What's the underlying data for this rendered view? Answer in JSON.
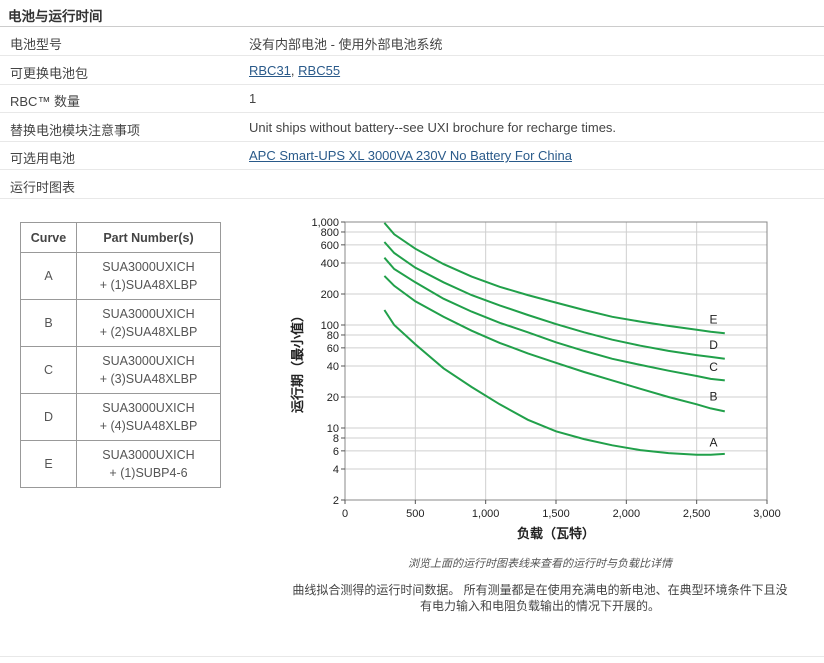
{
  "section_title": "电池与运行时间",
  "specs": [
    {
      "label": "电池型号",
      "value": "没有内部电池 - 使用外部电池系统"
    },
    {
      "label": "可更换电池包",
      "links": [
        "RBC31",
        "RBC55"
      ],
      "separator": ", "
    },
    {
      "label": "RBC™ 数量",
      "value": "1"
    },
    {
      "label": "替换电池模块注意事项",
      "value": "Unit ships without battery--see UXI brochure for recharge times."
    },
    {
      "label": "可选用电池",
      "link": "APC Smart-UPS XL 3000VA 230V No Battery For China"
    },
    {
      "label": "运行时图表",
      "value": ""
    }
  ],
  "curve_table": {
    "headers": [
      "Curve",
      "Part Number(s)"
    ],
    "rows": [
      {
        "curve": "A",
        "line1": "SUA3000UXICH",
        "line2": "+ (1)SUA48XLBP"
      },
      {
        "curve": "B",
        "line1": "SUA3000UXICH",
        "line2": "+ (2)SUA48XLBP"
      },
      {
        "curve": "C",
        "line1": "SUA3000UXICH",
        "line2": "+ (3)SUA48XLBP"
      },
      {
        "curve": "D",
        "line1": "SUA3000UXICH",
        "line2": "+ (4)SUA48XLBP"
      },
      {
        "curve": "E",
        "line1": "SUA3000UXICH",
        "line2": "+ (1)SUBP4-6"
      }
    ]
  },
  "chart_data": {
    "type": "line",
    "xlabel": "负载（瓦特）",
    "ylabel": "运行期（最小值）",
    "xlim": [
      0,
      3000
    ],
    "ylim": [
      2,
      1000
    ],
    "y_scale": "log",
    "x_ticks": [
      0,
      500,
      1000,
      1500,
      2000,
      2500,
      3000
    ],
    "x_tick_labels": [
      "0",
      "500",
      "1,000",
      "1,500",
      "2,000",
      "2,500",
      "3,000"
    ],
    "y_ticks": [
      2,
      4,
      6,
      8,
      10,
      20,
      40,
      60,
      80,
      100,
      200,
      400,
      600,
      800,
      1000
    ],
    "y_tick_labels": [
      "2",
      "4",
      "6",
      "8",
      "10",
      "20",
      "40",
      "60",
      "80",
      "100",
      "200",
      "400",
      "600",
      "800",
      "1,000"
    ],
    "grid": true,
    "line_color": "#21a04a",
    "series": [
      {
        "name": "A",
        "x": [
          280,
          350,
          500,
          700,
          900,
          1100,
          1300,
          1500,
          1700,
          1900,
          2100,
          2300,
          2500,
          2600,
          2700
        ],
        "y": [
          140,
          100,
          65,
          38,
          25,
          17,
          12,
          9.3,
          7.8,
          6.8,
          6.1,
          5.7,
          5.5,
          5.5,
          5.6
        ]
      },
      {
        "name": "B",
        "x": [
          280,
          350,
          500,
          700,
          900,
          1100,
          1300,
          1500,
          1700,
          1900,
          2100,
          2300,
          2500,
          2600,
          2700
        ],
        "y": [
          300,
          240,
          170,
          120,
          88,
          67,
          53,
          43,
          35,
          29,
          24,
          20,
          17,
          15.5,
          14.5
        ]
      },
      {
        "name": "C",
        "x": [
          280,
          350,
          500,
          700,
          900,
          1100,
          1300,
          1500,
          1700,
          1900,
          2100,
          2300,
          2500,
          2600,
          2700
        ],
        "y": [
          450,
          350,
          260,
          180,
          135,
          105,
          85,
          68,
          56,
          47,
          41,
          36,
          32,
          30,
          29
        ]
      },
      {
        "name": "D",
        "x": [
          280,
          350,
          500,
          700,
          900,
          1100,
          1300,
          1500,
          1700,
          1900,
          2100,
          2300,
          2500,
          2600,
          2700
        ],
        "y": [
          640,
          500,
          360,
          260,
          195,
          155,
          125,
          102,
          85,
          72,
          63,
          56,
          51,
          49,
          47
        ]
      },
      {
        "name": "E",
        "x": [
          280,
          350,
          500,
          700,
          900,
          1100,
          1300,
          1500,
          1700,
          1900,
          2100,
          2300,
          2500,
          2600,
          2700
        ],
        "y": [
          980,
          760,
          550,
          390,
          295,
          235,
          195,
          165,
          140,
          120,
          108,
          98,
          90,
          86,
          83
        ]
      }
    ]
  },
  "caption": "浏览上面的运行时图表线来查看的运行时与负载比详情",
  "note_line1": "曲线拟合测得的运行时间数据。 所有测量都是在使用充满电的新电池、在典型环境条件下且没",
  "note_line2": "有电力输入和电阻负载输出的情况下开展的。"
}
